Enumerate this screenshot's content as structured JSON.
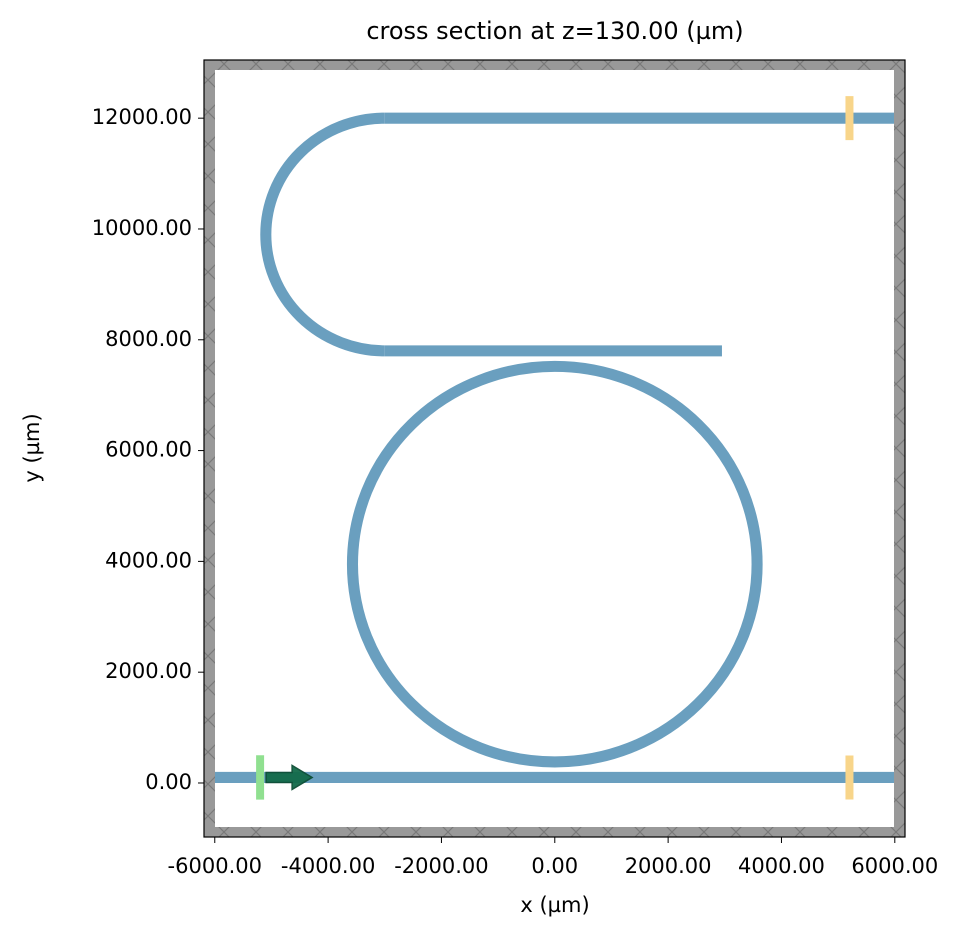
{
  "chart_data": {
    "type": "structure",
    "title": "cross section at z=130.00 (µm)",
    "xlabel": "x (µm)",
    "ylabel": "y (µm)",
    "xlim": [
      -6190,
      6180
    ],
    "ylim": [
      -975,
      13050
    ],
    "xticks": [
      {
        "value": -6000,
        "label": "-6000.00"
      },
      {
        "value": -4000,
        "label": "-4000.00"
      },
      {
        "value": -2000,
        "label": "-2000.00"
      },
      {
        "value": 0,
        "label": "0.00"
      },
      {
        "value": 2000,
        "label": "2000.00"
      },
      {
        "value": 4000,
        "label": "4000.00"
      },
      {
        "value": 6000,
        "label": "6000.00"
      }
    ],
    "yticks": [
      {
        "value": 0,
        "label": "0.00"
      },
      {
        "value": 2000,
        "label": "2000.00"
      },
      {
        "value": 4000,
        "label": "4000.00"
      },
      {
        "value": 6000,
        "label": "6000.00"
      },
      {
        "value": 8000,
        "label": "8000.00"
      },
      {
        "value": 10000,
        "label": "10000.00"
      },
      {
        "value": 12000,
        "label": "12000.00"
      }
    ],
    "color": "#6a9fbf",
    "width": 200,
    "waveguides": [
      {
        "x0": -6190,
        "x1": 6180,
        "y": 100
      },
      {
        "x0": -3000,
        "x1": 2950,
        "y": 7800
      },
      {
        "x0": -3000,
        "x1": 6180,
        "y": 12000
      }
    ],
    "ring": {
      "cx": 0,
      "cy": 3950,
      "r": 3570
    },
    "bend": {
      "cx": -3000,
      "cy": 9900,
      "r": 2100
    },
    "source": {
      "x": -5200,
      "y0": -300,
      "y1": 500,
      "color": "#90e090"
    },
    "monitors": [
      {
        "x": 5200,
        "y": 100
      },
      {
        "x": 5200,
        "y": 12000
      }
    ],
    "monitor_color": "#f8d58a"
  }
}
